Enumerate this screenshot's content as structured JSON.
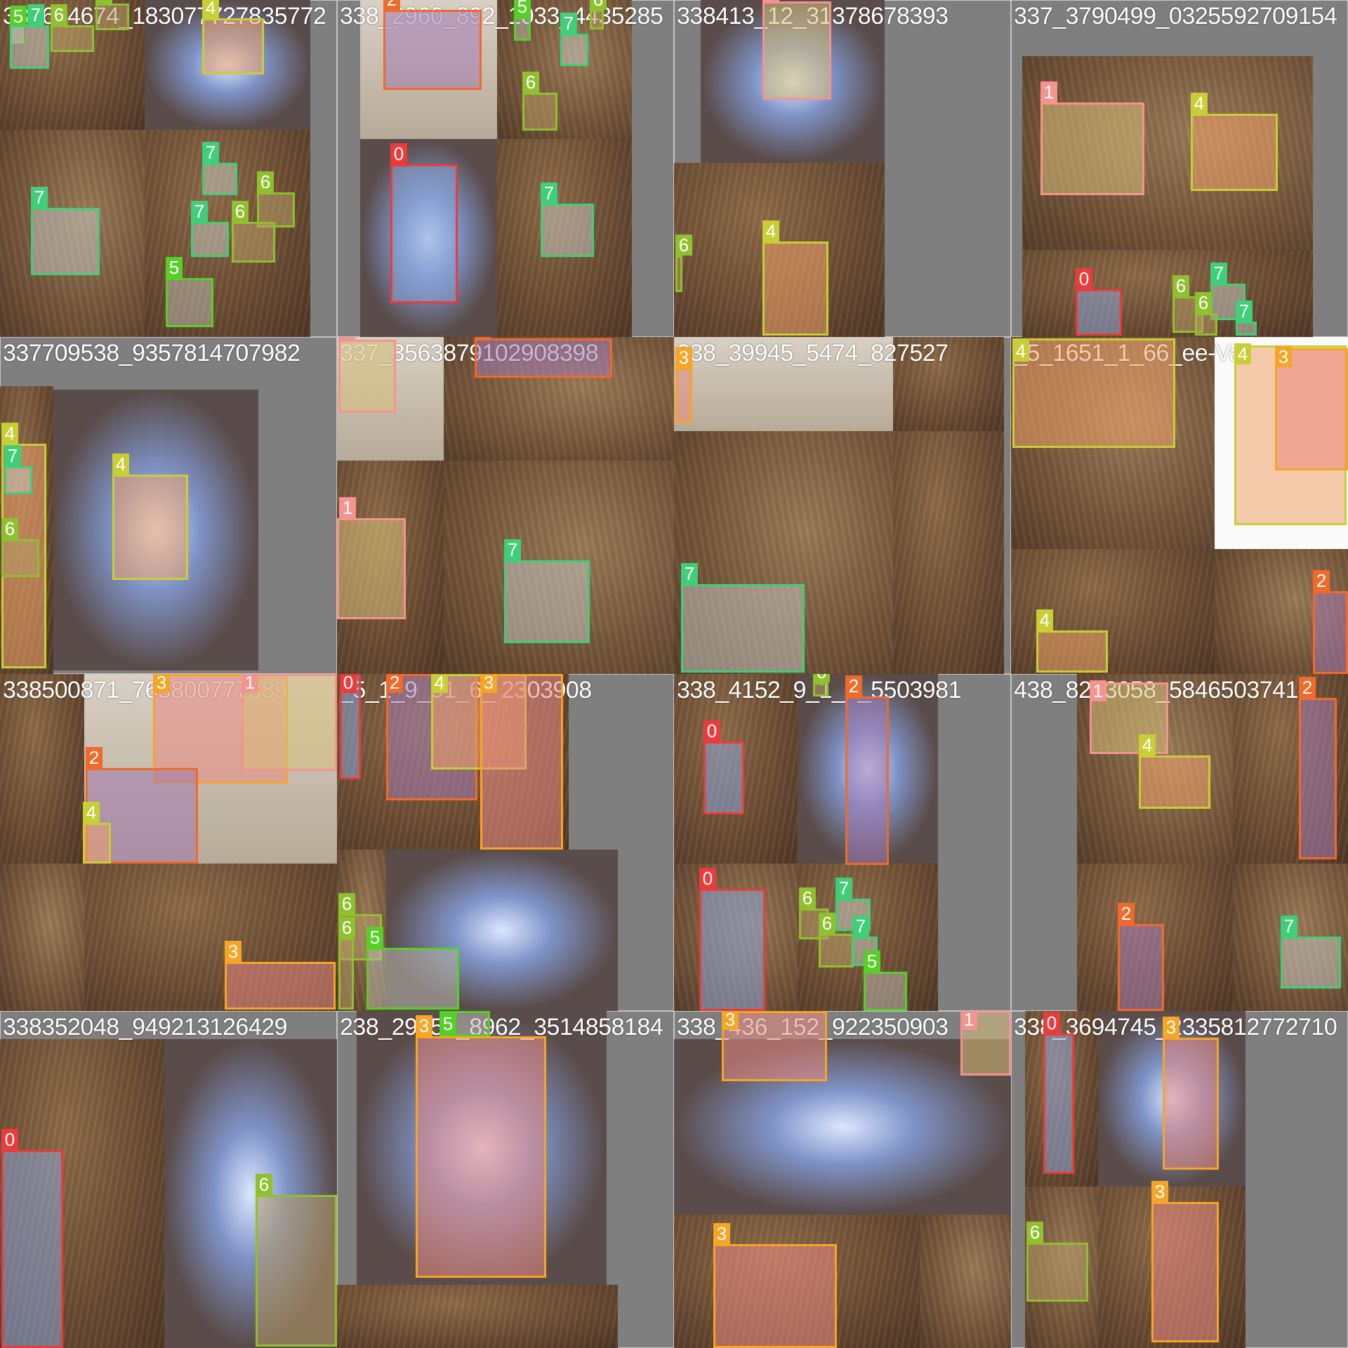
{
  "palette": {
    "0": "#ec3b3b",
    "1": "#f5938f",
    "2": "#f06a2a",
    "3": "#f6a524",
    "4": "#c7cf34",
    "5": "#55d026",
    "6": "#8fc02d",
    "7": "#3ecf78"
  },
  "class_fill": {
    "0": "#8aa6d8",
    "1": "#d7c07a",
    "2": "#a27ab2",
    "3": "#e98a83",
    "4": "#efa36a",
    "5": "#b9b6ad",
    "6": "#b69a66",
    "7": "#c3c3bd"
  },
  "tiles": [
    {
      "caption": "337694674_183077727835772",
      "boxes": [
        {
          "c": "5"
        },
        {
          "c": "7"
        },
        {
          "c": "6"
        },
        {
          "c": "6"
        },
        {
          "c": "4"
        },
        {
          "c": "7"
        },
        {
          "c": "7"
        },
        {
          "c": "6"
        },
        {
          "c": "7"
        },
        {
          "c": "6"
        },
        {
          "c": "5"
        }
      ]
    },
    {
      "caption": "338_2960_892_1033_4435285",
      "boxes": [
        {
          "c": "2"
        },
        {
          "c": "5"
        },
        {
          "c": "7"
        },
        {
          "c": "6"
        },
        {
          "c": "6"
        },
        {
          "c": "0"
        },
        {
          "c": "7"
        }
      ]
    },
    {
      "caption": "338413_12_31378678393",
      "boxes": [
        {
          "c": "1"
        },
        {
          "c": "6"
        },
        {
          "c": "4"
        }
      ]
    },
    {
      "caption": "337_3790499_0325592709154",
      "boxes": [
        {
          "c": "1"
        },
        {
          "c": "4"
        },
        {
          "c": "0"
        },
        {
          "c": "6"
        },
        {
          "c": "7"
        },
        {
          "c": "6"
        },
        {
          "c": "7"
        }
      ]
    },
    {
      "caption": "337709538_9357814707982",
      "boxes": [
        {
          "c": "4"
        },
        {
          "c": "7"
        },
        {
          "c": "6"
        },
        {
          "c": "4"
        }
      ]
    },
    {
      "caption": "337_3563879102908398",
      "boxes": [
        {
          "c": "1"
        },
        {
          "c": "2"
        },
        {
          "c": "1"
        },
        {
          "c": "7"
        }
      ]
    },
    {
      "caption": "338_39945_5474_827527",
      "boxes": [
        {
          "c": "3"
        },
        {
          "c": "7"
        }
      ]
    },
    {
      "caption": "_5_1651_1_66_ee-Va",
      "boxes": [
        {
          "c": "4"
        },
        {
          "c": "4"
        },
        {
          "c": "3"
        },
        {
          "c": "4"
        },
        {
          "c": "2"
        }
      ]
    },
    {
      "caption": "338500871_765800777389",
      "boxes": [
        {
          "c": "3"
        },
        {
          "c": "1"
        },
        {
          "c": "2"
        },
        {
          "c": "4"
        },
        {
          "c": "3"
        }
      ]
    },
    {
      "caption": "_5_1_9_01_6_ 2303908",
      "boxes": [
        {
          "c": "0"
        },
        {
          "c": "2"
        },
        {
          "c": "4"
        },
        {
          "c": "3"
        },
        {
          "c": "6"
        },
        {
          "c": "6"
        },
        {
          "c": "5"
        }
      ]
    },
    {
      "caption": "338_4152_9_1_1_5503981",
      "boxes": [
        {
          "c": "0"
        },
        {
          "c": "6"
        },
        {
          "c": "2"
        },
        {
          "c": "0"
        },
        {
          "c": "6"
        },
        {
          "c": "7"
        },
        {
          "c": "6"
        },
        {
          "c": "7"
        },
        {
          "c": "5"
        }
      ]
    },
    {
      "caption": "438_8213058_5846503741",
      "boxes": [
        {
          "c": "1"
        },
        {
          "c": "4"
        },
        {
          "c": "2"
        },
        {
          "c": "2"
        },
        {
          "c": "7"
        }
      ]
    },
    {
      "caption": "338352048_949213126429",
      "boxes": [
        {
          "c": "0"
        },
        {
          "c": "6"
        }
      ]
    },
    {
      "caption": "238_29650_8962_3514858184",
      "boxes": [
        {
          "c": "3"
        },
        {
          "c": "5"
        }
      ]
    },
    {
      "caption": "338_436_152_922350903",
      "boxes": [
        {
          "c": "3"
        },
        {
          "c": "1"
        },
        {
          "c": "3"
        }
      ]
    },
    {
      "caption": "338_3694745_2335812772710",
      "boxes": [
        {
          "c": "0"
        },
        {
          "c": "3"
        },
        {
          "c": "6"
        },
        {
          "c": "3"
        }
      ]
    }
  ]
}
